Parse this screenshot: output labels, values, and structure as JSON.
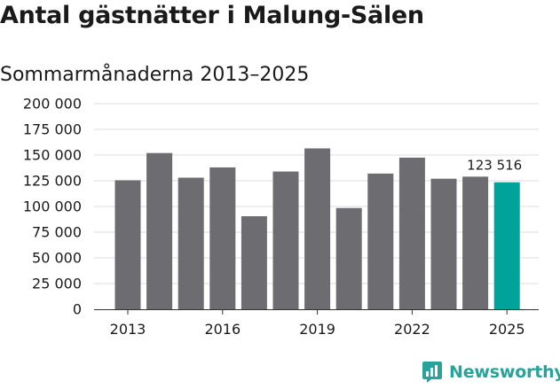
{
  "chart_data": {
    "type": "bar",
    "title": "Antal gästnätter i Malung-Sälen",
    "subtitle": "Sommarmånaderna 2013–2025",
    "categories": [
      "2013",
      "2014",
      "2015",
      "2016",
      "2017",
      "2018",
      "2019",
      "2020",
      "2021",
      "2022",
      "2023",
      "2024",
      "2025"
    ],
    "values": [
      125500,
      152000,
      128000,
      138000,
      90500,
      134000,
      156500,
      98500,
      132000,
      147500,
      127000,
      129000,
      123516
    ],
    "x_tick_labels": [
      "2013",
      "2016",
      "2019",
      "2022",
      "2025"
    ],
    "y_tick_labels": [
      "0",
      "25 000",
      "50 000",
      "75 000",
      "100 000",
      "125 000",
      "150 000",
      "175 000",
      "200 000"
    ],
    "ylim": [
      0,
      200000
    ],
    "grid": true,
    "legend": "none",
    "annotations": [
      {
        "category": "2025",
        "text": "123 516"
      }
    ],
    "colors": {
      "bar": "#6d6c71",
      "highlight": "#00a39a",
      "grid": "#dddddd"
    }
  },
  "branding": {
    "logo_text": "Newsworthy",
    "logo_icon": "newsworthy-chart-icon",
    "logo_color": "#27a39a"
  }
}
